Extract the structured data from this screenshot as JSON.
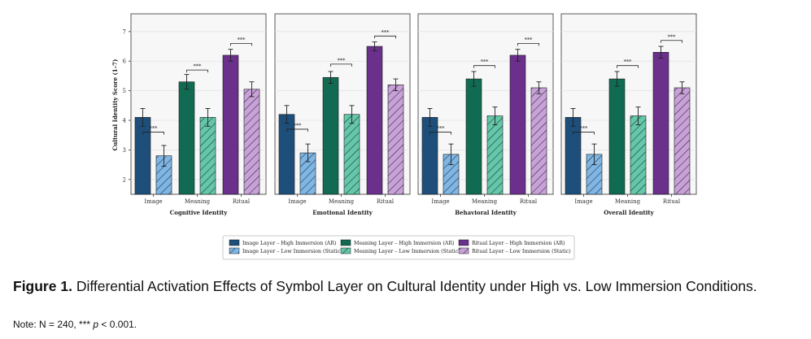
{
  "chart_data": {
    "type": "bar",
    "ylabel": "Cultural Identity Score (1–7)",
    "ylim": [
      1.5,
      7.6
    ],
    "yticks": [
      2,
      3,
      4,
      5,
      6,
      7
    ],
    "grid": true,
    "legend_position": "bottom-center",
    "categories": [
      "Image",
      "Meaning",
      "Ritual"
    ],
    "significance_label": "***",
    "panels": [
      {
        "title": "Cognitive Identity",
        "high": [
          4.1,
          5.3,
          6.2
        ],
        "high_err": [
          0.3,
          0.25,
          0.2
        ],
        "low": [
          2.8,
          4.1,
          5.05
        ],
        "low_err": [
          0.35,
          0.3,
          0.25
        ],
        "sig_y": [
          3.6,
          5.7,
          6.6
        ]
      },
      {
        "title": "Emotional Identity",
        "high": [
          4.2,
          5.45,
          6.5
        ],
        "high_err": [
          0.3,
          0.2,
          0.15
        ],
        "low": [
          2.9,
          4.2,
          5.2
        ],
        "low_err": [
          0.3,
          0.3,
          0.2
        ],
        "sig_y": [
          3.7,
          5.9,
          6.85
        ]
      },
      {
        "title": "Behavioral Identity",
        "high": [
          4.1,
          5.4,
          6.2
        ],
        "high_err": [
          0.3,
          0.25,
          0.2
        ],
        "low": [
          2.85,
          4.15,
          5.1
        ],
        "low_err": [
          0.35,
          0.3,
          0.2
        ],
        "sig_y": [
          3.6,
          5.85,
          6.6
        ]
      },
      {
        "title": "Overall Identity",
        "high": [
          4.1,
          5.4,
          6.3
        ],
        "high_err": [
          0.3,
          0.25,
          0.2
        ],
        "low": [
          2.85,
          4.15,
          5.1
        ],
        "low_err": [
          0.35,
          0.3,
          0.2
        ],
        "sig_y": [
          3.6,
          5.85,
          6.7
        ]
      }
    ],
    "legend": [
      {
        "label": "Image Layer – High Immersion (AR)",
        "color": "#1d4f7a",
        "pattern": "solid"
      },
      {
        "label": "Meaning Layer – High Immersion (AR)",
        "color": "#116b52",
        "pattern": "solid"
      },
      {
        "label": "Ritual Layer – High Immersion (AR)",
        "color": "#6b2f8c",
        "pattern": "solid"
      },
      {
        "label": "Image Layer – Low Immersion (Static)",
        "color": "#7fb6e4",
        "pattern": "hatch"
      },
      {
        "label": "Meaning Layer – Low Immersion (Static)",
        "color": "#63c7a8",
        "pattern": "hatch"
      },
      {
        "label": "Ritual Layer – Low Immersion (Static)",
        "color": "#c9a1d8",
        "pattern": "hatch"
      }
    ],
    "colors": {
      "high": [
        "#1d4f7a",
        "#116b52",
        "#6b2f8c"
      ],
      "low": [
        "#7fb6e4",
        "#63c7a8",
        "#c9a1d8"
      ],
      "panel_bg": "#f7f7f7",
      "grid": "#e4e4e4"
    }
  },
  "caption": {
    "label": "Figure 1.",
    "text": "Differential Activation Effects of Symbol Layer on Cultural Identity under High vs. Low Immersion Conditions.",
    "note_prefix": "Note: N = 240, ",
    "note_stars": "***",
    "note_p": "p",
    "note_suffix": " < 0.001."
  }
}
